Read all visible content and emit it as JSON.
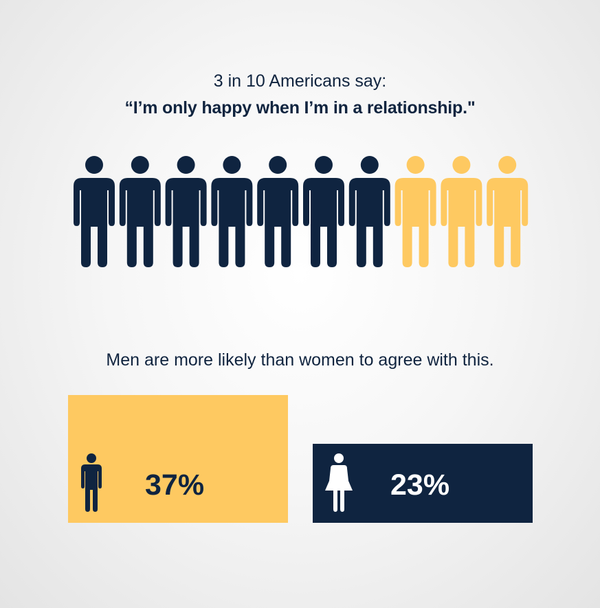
{
  "header": {
    "line1": "3 in 10 Americans say:",
    "line2": "“I’m only happy when I’m in a relationship.\""
  },
  "colors": {
    "navy": "#0f2440",
    "yellow": "#fec961",
    "white": "#ffffff"
  },
  "subhead": "Men are more likely than women to agree with this.",
  "chart_data": [
    {
      "type": "icon-array",
      "total": 10,
      "highlighted": 3,
      "highlight_color": "#fec961",
      "base_color": "#0f2440",
      "icon": "person-icon"
    },
    {
      "type": "bar",
      "categories": [
        "Men",
        "Women"
      ],
      "values": [
        37,
        23
      ],
      "value_labels": [
        "37%",
        "23%"
      ],
      "icons": [
        "male-icon",
        "female-icon"
      ],
      "bar_colors": [
        "#fec961",
        "#0f2440"
      ],
      "label_colors": [
        "#0f2440",
        "#ffffff"
      ]
    }
  ]
}
